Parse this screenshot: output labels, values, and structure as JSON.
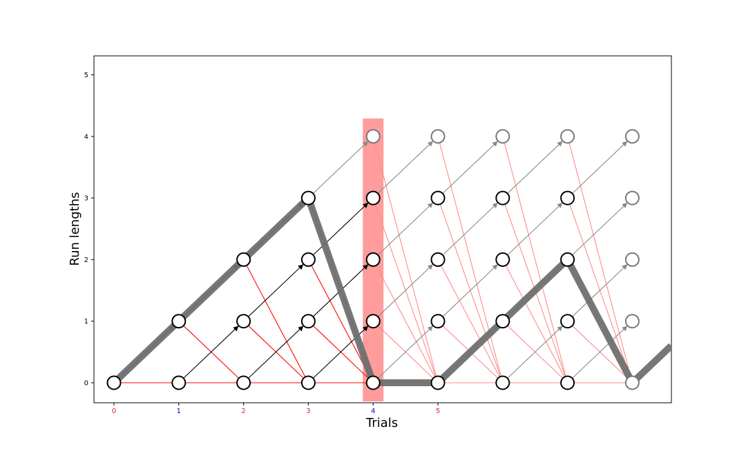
{
  "chart_data": {
    "type": "diagram",
    "xlabel": "Trials",
    "ylabel": "Run lengths",
    "x_ticks": [
      {
        "label": "0",
        "color": "#d62728"
      },
      {
        "label": "1",
        "color": "#0000cc"
      },
      {
        "label": "2",
        "color": "#d62728"
      },
      {
        "label": "3",
        "color": "#d62728"
      },
      {
        "label": "4",
        "color": "#0000cc"
      },
      {
        "label": "5",
        "color": "#d62728"
      }
    ],
    "y_ticks": [
      "0",
      "1",
      "2",
      "3",
      "4",
      "5"
    ],
    "xlim": [
      -0.3,
      8.6
    ],
    "ylim": [
      -0.33,
      5.3
    ],
    "highlight_trial": 4,
    "num_trials": 9,
    "max_run_length": 4,
    "faded_from_trial": 4,
    "path": [
      [
        0,
        0
      ],
      [
        1,
        1
      ],
      [
        2,
        2
      ],
      [
        3,
        3
      ],
      [
        4,
        0
      ],
      [
        5,
        0
      ],
      [
        6,
        1
      ],
      [
        7,
        2
      ],
      [
        8,
        0
      ],
      [
        8.6,
        0.6
      ]
    ],
    "colors": {
      "growth": "#000000",
      "growth_faded": "#888888",
      "changepoint": "#ff0000",
      "changepoint_faded": "#ff8a8a",
      "path": "#707070",
      "highlight": "#ff9c9c",
      "node_fill": "#ffffff",
      "node_stroke": "#000000",
      "node_stroke_faded": "#777777"
    }
  }
}
